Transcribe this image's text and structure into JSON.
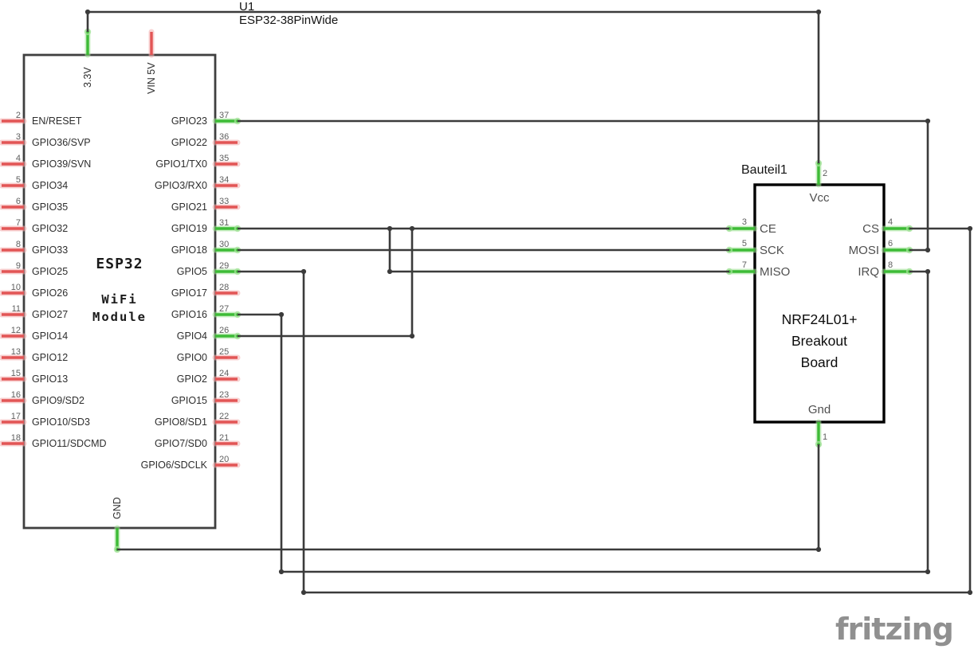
{
  "schematic": {
    "designator": "U1",
    "part_name": "ESP32-38PinWide",
    "watermark": "fritzing"
  },
  "esp32": {
    "title": "ESP32",
    "subtitle_line1": "WiFi",
    "subtitle_line2": "Module",
    "top_pins": [
      {
        "label": "3.3V",
        "state": "connected"
      },
      {
        "label": "VIN 5V",
        "state": "unconnected"
      }
    ],
    "bottom_pins": [
      {
        "label": "GND",
        "state": "connected"
      }
    ],
    "left_pins": [
      {
        "num": "2",
        "label": "EN/RESET",
        "state": "unconnected"
      },
      {
        "num": "3",
        "label": "GPIO36/SVP",
        "state": "unconnected"
      },
      {
        "num": "4",
        "label": "GPIO39/SVN",
        "state": "unconnected"
      },
      {
        "num": "5",
        "label": "GPIO34",
        "state": "unconnected"
      },
      {
        "num": "6",
        "label": "GPIO35",
        "state": "unconnected"
      },
      {
        "num": "7",
        "label": "GPIO32",
        "state": "unconnected"
      },
      {
        "num": "8",
        "label": "GPIO33",
        "state": "unconnected"
      },
      {
        "num": "9",
        "label": "GPIO25",
        "state": "unconnected"
      },
      {
        "num": "10",
        "label": "GPIO26",
        "state": "unconnected"
      },
      {
        "num": "11",
        "label": "GPIO27",
        "state": "unconnected"
      },
      {
        "num": "12",
        "label": "GPIO14",
        "state": "unconnected"
      },
      {
        "num": "13",
        "label": "GPIO12",
        "state": "unconnected"
      },
      {
        "num": "15",
        "label": "GPIO13",
        "state": "unconnected"
      },
      {
        "num": "16",
        "label": "GPIO9/SD2",
        "state": "unconnected"
      },
      {
        "num": "17",
        "label": "GPIO10/SD3",
        "state": "unconnected"
      },
      {
        "num": "18",
        "label": "GPIO11/SDCMD",
        "state": "unconnected"
      }
    ],
    "right_pins": [
      {
        "num": "37",
        "label": "GPIO23",
        "state": "connected"
      },
      {
        "num": "36",
        "label": "GPIO22",
        "state": "unconnected"
      },
      {
        "num": "35",
        "label": "GPIO1/TX0",
        "state": "unconnected"
      },
      {
        "num": "34",
        "label": "GPIO3/RX0",
        "state": "unconnected"
      },
      {
        "num": "33",
        "label": "GPIO21",
        "state": "unconnected"
      },
      {
        "num": "31",
        "label": "GPIO19",
        "state": "connected"
      },
      {
        "num": "30",
        "label": "GPIO18",
        "state": "connected"
      },
      {
        "num": "29",
        "label": "GPIO5",
        "state": "connected"
      },
      {
        "num": "28",
        "label": "GPIO17",
        "state": "unconnected"
      },
      {
        "num": "27",
        "label": "GPIO16",
        "state": "connected"
      },
      {
        "num": "26",
        "label": "GPIO4",
        "state": "connected"
      },
      {
        "num": "25",
        "label": "GPIO0",
        "state": "unconnected"
      },
      {
        "num": "24",
        "label": "GPIO2",
        "state": "unconnected"
      },
      {
        "num": "23",
        "label": "GPIO15",
        "state": "unconnected"
      },
      {
        "num": "22",
        "label": "GPIO8/SD1",
        "state": "unconnected"
      },
      {
        "num": "21",
        "label": "GPIO7/SD0",
        "state": "unconnected"
      },
      {
        "num": "20",
        "label": "GPIO6/SDCLK",
        "state": "unconnected"
      }
    ]
  },
  "nrf24l01": {
    "designator": "Bauteil1",
    "name_line1": "NRF24L01+",
    "name_line2": "Breakout",
    "name_line3": "Board",
    "top_pins": [
      {
        "num": "2",
        "label": "Vcc",
        "state": "connected"
      }
    ],
    "bottom_pins": [
      {
        "num": "1",
        "label": "Gnd",
        "state": "connected"
      }
    ],
    "left_pins": [
      {
        "num": "3",
        "label": "CE",
        "state": "connected"
      },
      {
        "num": "5",
        "label": "SCK",
        "state": "connected"
      },
      {
        "num": "7",
        "label": "MISO",
        "state": "connected"
      }
    ],
    "right_pins": [
      {
        "num": "4",
        "label": "CS",
        "state": "connected"
      },
      {
        "num": "6",
        "label": "MOSI",
        "state": "connected"
      },
      {
        "num": "8",
        "label": "IRQ",
        "state": "connected"
      }
    ]
  },
  "nets": [
    {
      "from": "ESP32 3.3V",
      "to": "NRF24L01+ Vcc (pin 2)"
    },
    {
      "from": "ESP32 GND",
      "to": "NRF24L01+ Gnd (pin 1)"
    },
    {
      "from": "ESP32 GPIO23 (37)",
      "to": "NRF24L01+ MOSI (pin 6)"
    },
    {
      "from": "ESP32 GPIO18 (30)",
      "to": "NRF24L01+ SCK (pin 5)"
    },
    {
      "from": "ESP32 GPIO5 (29)",
      "to": "NRF24L01+ CS (pin 4)"
    },
    {
      "from": "ESP32 GPIO16 (27)",
      "to": "NRF24L01+ IRQ (pin 8)"
    },
    {
      "from": "ESP32 GPIO19 (31)",
      "to": "NRF24L01+ CE (pin 3)",
      "also_joined": [
        "NRF24L01+ MISO (pin 7)",
        "ESP32 GPIO4 (26)"
      ]
    }
  ],
  "colors": {
    "wire": "#3b3b3b",
    "connected_pin": "#3dbb36",
    "connected_pin_halo": "#a2e297",
    "unconnected_pin": "#e25555",
    "unconnected_pin_halo": "#f3aeae",
    "esp_border": "#3f3f3f",
    "nrf_border": "#000000",
    "pin_label": "#2e2e2e",
    "pin_number": "#5e5e5e",
    "nrf_pin_label": "#4f4f4f",
    "watermark": "#909090"
  }
}
